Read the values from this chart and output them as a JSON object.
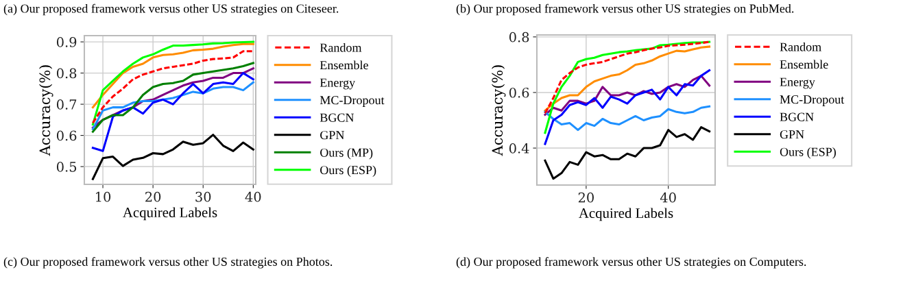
{
  "chart_data": [
    {
      "type": "line",
      "title": "(a) Our proposed framework versus other US strategies on Citeseer.",
      "xlabel": "Acquired Labels",
      "ylabel": "Accuracy(%)",
      "annotations": [
        "(c) Our proposed framework versus other US strategies on Photos."
      ],
      "x": [
        8,
        10,
        12,
        14,
        16,
        18,
        20,
        22,
        24,
        26,
        28,
        30,
        32,
        34,
        36,
        38,
        40
      ],
      "series": [
        {
          "name": "Random",
          "color": "#ff0000",
          "line_style": "dashed",
          "values": [
            0.64,
            0.69,
            0.725,
            0.75,
            0.78,
            0.795,
            0.805,
            0.815,
            0.82,
            0.825,
            0.83,
            0.84,
            0.845,
            0.847,
            0.85,
            0.87,
            0.87
          ]
        },
        {
          "name": "Ensemble",
          "color": "#ff8c00",
          "values": [
            0.69,
            0.73,
            0.765,
            0.8,
            0.82,
            0.83,
            0.85,
            0.858,
            0.86,
            0.865,
            0.873,
            0.875,
            0.878,
            0.885,
            0.89,
            0.893,
            0.893
          ]
        },
        {
          "name": "Energy",
          "color": "#800080",
          "values": [
            0.625,
            0.65,
            0.665,
            0.68,
            0.69,
            0.71,
            0.715,
            0.73,
            0.745,
            0.76,
            0.77,
            0.775,
            0.785,
            0.785,
            0.8,
            0.8,
            0.815
          ]
        },
        {
          "name": "MC-Dropout",
          "color": "#1e90ff",
          "values": [
            0.62,
            0.68,
            0.69,
            0.69,
            0.705,
            0.71,
            0.71,
            0.715,
            0.72,
            0.73,
            0.74,
            0.735,
            0.75,
            0.755,
            0.755,
            0.745,
            0.77
          ]
        },
        {
          "name": "BGCN",
          "color": "#0000ff",
          "values": [
            0.56,
            0.55,
            0.66,
            0.68,
            0.69,
            0.67,
            0.705,
            0.715,
            0.7,
            0.735,
            0.765,
            0.735,
            0.765,
            0.77,
            0.765,
            0.8,
            0.78
          ]
        },
        {
          "name": "GPN",
          "color": "#000000",
          "values": [
            0.46,
            0.527,
            0.532,
            0.502,
            0.522,
            0.528,
            0.543,
            0.54,
            0.555,
            0.58,
            0.57,
            0.575,
            0.602,
            0.567,
            0.55,
            0.577,
            0.555
          ]
        },
        {
          "name": "Ours (MP)",
          "color": "#008000",
          "values": [
            0.612,
            0.65,
            0.665,
            0.665,
            0.69,
            0.73,
            0.755,
            0.765,
            0.768,
            0.775,
            0.795,
            0.8,
            0.805,
            0.81,
            0.815,
            0.822,
            0.832
          ]
        },
        {
          "name": "Ours (ESP)",
          "color": "#00ff00",
          "values": [
            0.635,
            0.745,
            0.775,
            0.805,
            0.83,
            0.85,
            0.86,
            0.875,
            0.888,
            0.888,
            0.89,
            0.892,
            0.895,
            0.896,
            0.898,
            0.899,
            0.9
          ]
        }
      ],
      "xlim": [
        6.3,
        40.5
      ],
      "ylim": [
        0.443,
        0.92
      ],
      "xticks": [
        10,
        20,
        30,
        40
      ],
      "yticks": [
        0.5,
        0.6,
        0.7,
        0.8,
        0.9
      ],
      "grid": true,
      "legend": "right",
      "line_style": "solid"
    },
    {
      "type": "line",
      "title": "(b) Our proposed framework versus other US strategies on PubMed.",
      "xlabel": "Acquired Labels",
      "ylabel": "Accuracy(%)",
      "annotations": [
        "(d) Our proposed framework versus other US strategies on Computers."
      ],
      "x": [
        10,
        12,
        14,
        16,
        18,
        20,
        22,
        24,
        26,
        28,
        30,
        32,
        34,
        36,
        38,
        40,
        42,
        44,
        46,
        48,
        50
      ],
      "series": [
        {
          "name": "Random",
          "color": "#ff0000",
          "line_style": "dashed",
          "values": [
            0.525,
            0.58,
            0.645,
            0.67,
            0.69,
            0.7,
            0.705,
            0.71,
            0.72,
            0.73,
            0.74,
            0.745,
            0.752,
            0.758,
            0.762,
            0.768,
            0.77,
            0.772,
            0.775,
            0.778,
            0.782
          ]
        },
        {
          "name": "Ensemble",
          "color": "#ff8c00",
          "values": [
            0.535,
            0.56,
            0.58,
            0.59,
            0.59,
            0.62,
            0.64,
            0.65,
            0.66,
            0.665,
            0.68,
            0.7,
            0.705,
            0.715,
            0.73,
            0.74,
            0.75,
            0.748,
            0.755,
            0.762,
            0.765
          ]
        },
        {
          "name": "Energy",
          "color": "#800080",
          "values": [
            0.52,
            0.545,
            0.535,
            0.57,
            0.57,
            0.56,
            0.57,
            0.62,
            0.59,
            0.59,
            0.6,
            0.59,
            0.605,
            0.595,
            0.6,
            0.62,
            0.63,
            0.62,
            0.645,
            0.66,
            0.625
          ]
        },
        {
          "name": "MC-Dropout",
          "color": "#1e90ff",
          "values": [
            0.53,
            0.505,
            0.485,
            0.49,
            0.465,
            0.49,
            0.48,
            0.505,
            0.49,
            0.485,
            0.5,
            0.515,
            0.5,
            0.51,
            0.515,
            0.54,
            0.53,
            0.525,
            0.53,
            0.545,
            0.55
          ]
        },
        {
          "name": "BGCN",
          "color": "#0000ff",
          "values": [
            0.415,
            0.5,
            0.52,
            0.555,
            0.565,
            0.555,
            0.58,
            0.545,
            0.585,
            0.575,
            0.56,
            0.59,
            0.6,
            0.61,
            0.575,
            0.62,
            0.59,
            0.63,
            0.625,
            0.66,
            0.68
          ]
        },
        {
          "name": "GPN",
          "color": "#000000",
          "values": [
            0.355,
            0.29,
            0.31,
            0.35,
            0.34,
            0.385,
            0.37,
            0.375,
            0.36,
            0.36,
            0.38,
            0.37,
            0.4,
            0.4,
            0.41,
            0.465,
            0.44,
            0.45,
            0.43,
            0.475,
            0.46
          ]
        },
        {
          "name": "Ours (ESP)",
          "color": "#00ff00",
          "values": [
            0.455,
            0.56,
            0.62,
            0.66,
            0.71,
            0.72,
            0.725,
            0.735,
            0.74,
            0.745,
            0.748,
            0.752,
            0.755,
            0.758,
            0.77,
            0.772,
            0.775,
            0.778,
            0.78,
            0.78,
            0.782
          ]
        }
      ],
      "xlim": [
        8,
        51.4
      ],
      "ylim": [
        0.267,
        0.807
      ],
      "xticks": [
        20,
        40
      ],
      "yticks": [
        0.4,
        0.6,
        0.8
      ],
      "grid": true,
      "legend": "right",
      "line_style": "solid"
    }
  ]
}
